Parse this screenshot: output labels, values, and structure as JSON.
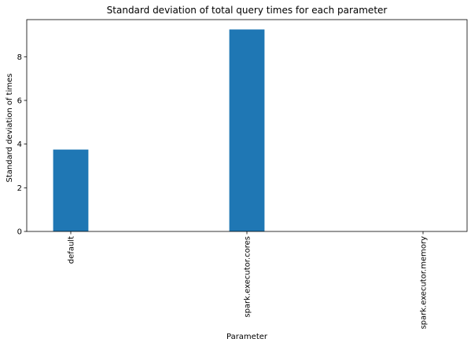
{
  "chart_data": {
    "type": "bar",
    "title": "Standard deviation of total query times for each parameter",
    "xlabel": "Parameter",
    "ylabel": "Standard deviation of times",
    "categories": [
      "default",
      "spark.executor.cores",
      "spark.executor.memory"
    ],
    "values": [
      3.75,
      9.25,
      0
    ],
    "ylim": [
      0,
      9.7
    ],
    "yticks": [
      0,
      2,
      4,
      6,
      8
    ],
    "bar_color": "#1f77b4",
    "grid": false,
    "legend": "none"
  }
}
